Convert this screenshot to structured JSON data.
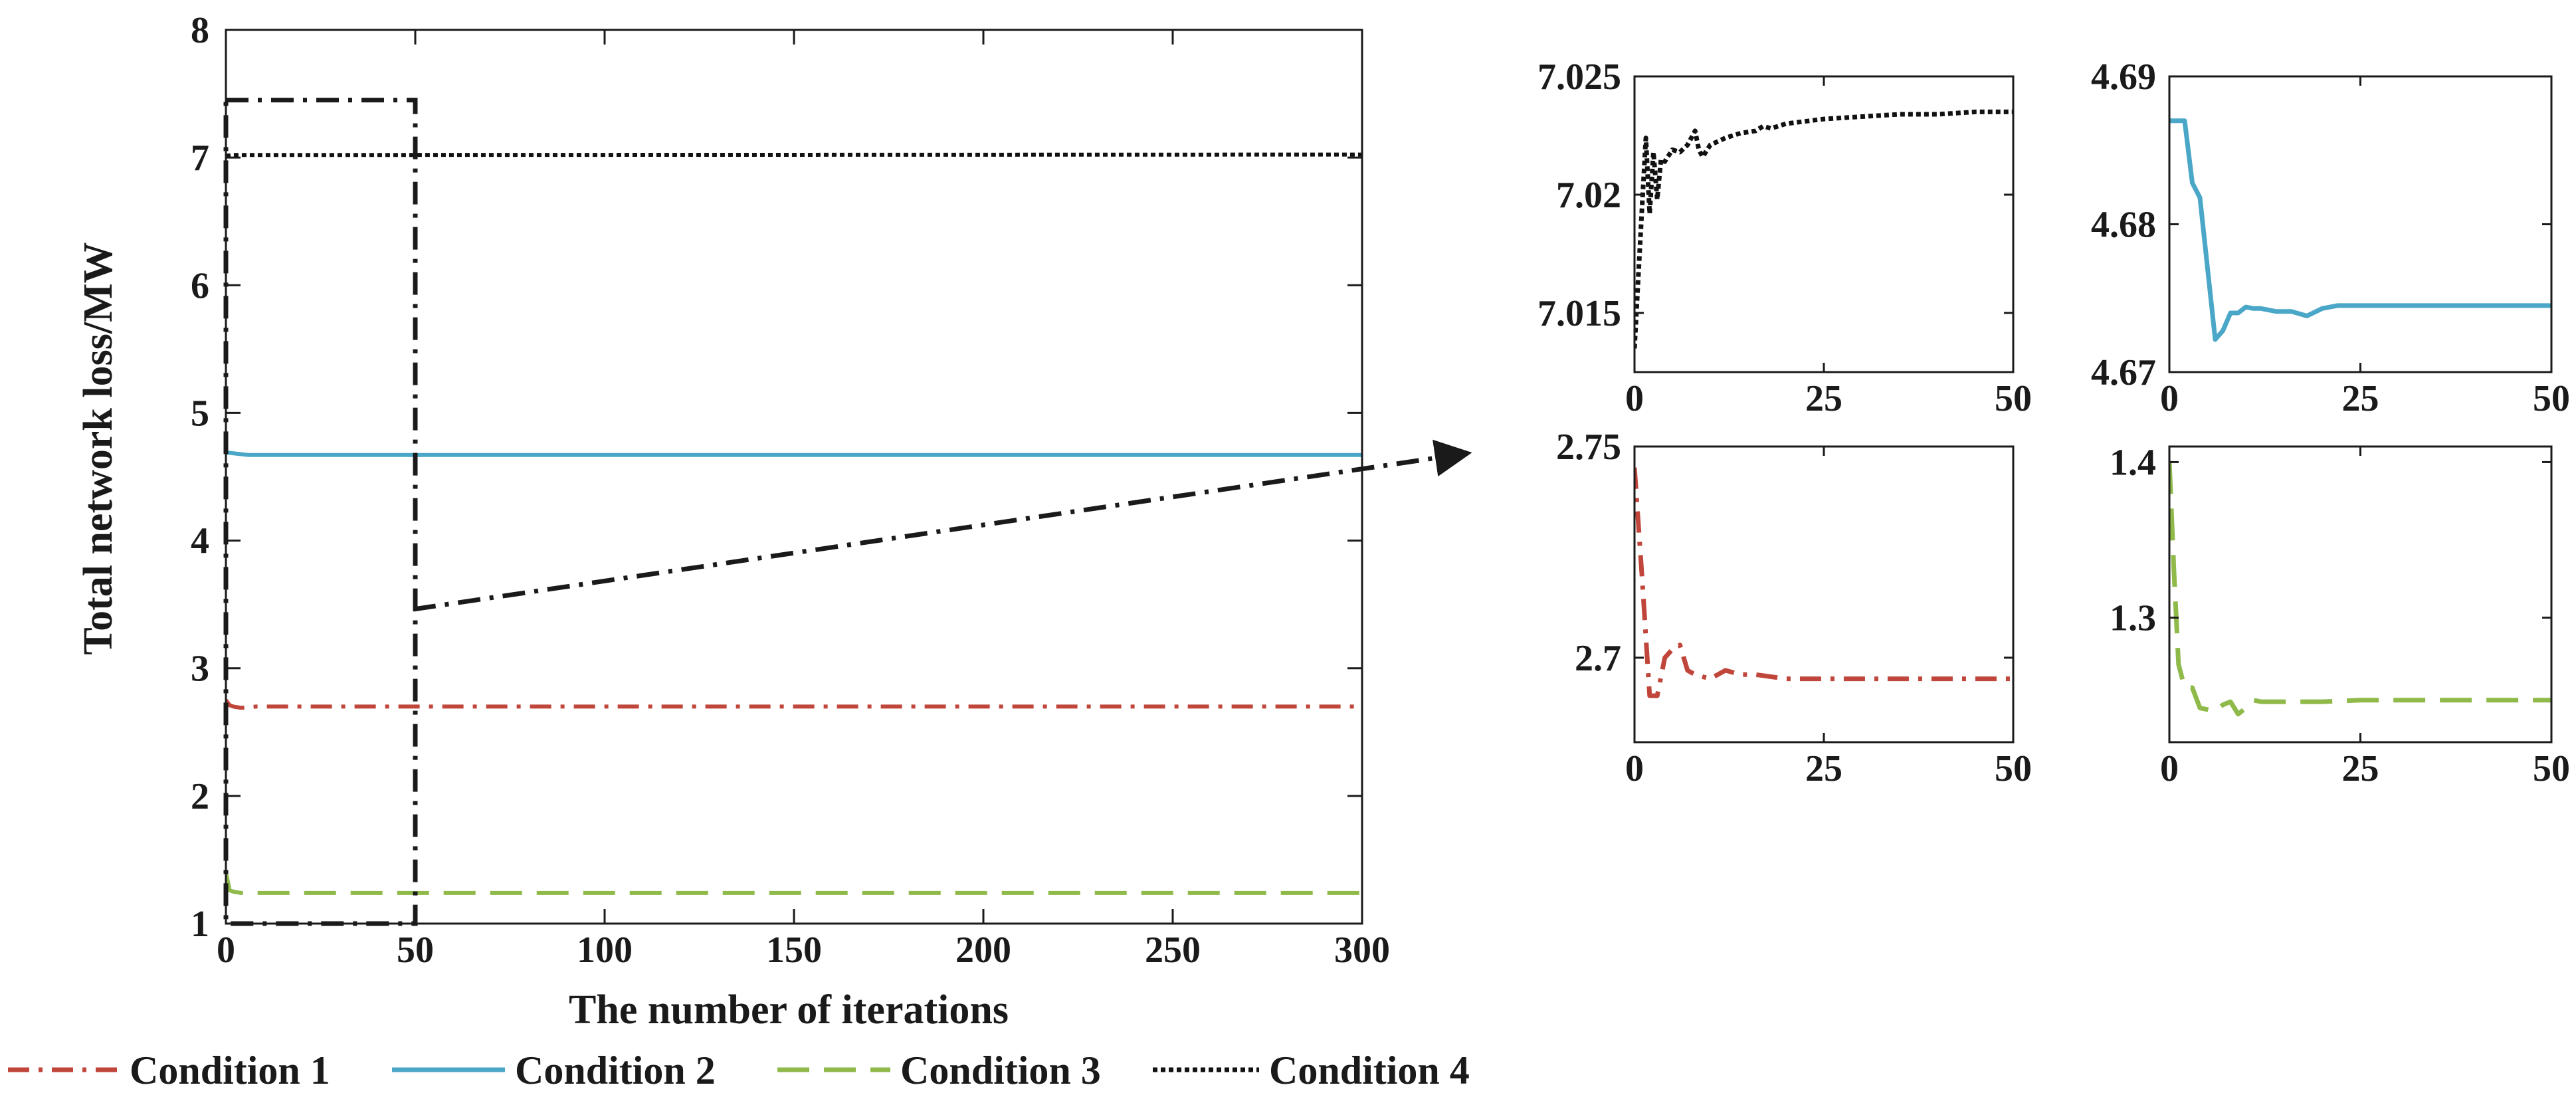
{
  "colors": {
    "condition_1": "#c0463b",
    "condition_2": "#4aa7c8",
    "condition_3": "#8fba4a",
    "condition_4": "#111111",
    "zoom_box": "#1a1a1a"
  },
  "chart_data": [
    {
      "id": "main",
      "type": "line",
      "title": "",
      "xlabel": "The number of iterations",
      "ylabel": "Total network loss/MW",
      "xlim": [
        0,
        300
      ],
      "ylim": [
        1,
        8
      ],
      "xticks": [
        "0",
        "50",
        "100",
        "150",
        "200",
        "250",
        "300"
      ],
      "yticks": [
        "1",
        "2",
        "3",
        "4",
        "5",
        "6",
        "7",
        "8"
      ],
      "grid": false,
      "zoom_region": {
        "x": [
          0,
          50
        ],
        "y": [
          1,
          7.45
        ]
      },
      "series": [
        {
          "name": "Condition 1",
          "style": "dash-dot",
          "x": [
            0,
            1,
            2,
            4,
            8,
            300
          ],
          "y": [
            2.75,
            2.71,
            2.7,
            2.69,
            2.7,
            2.7
          ]
        },
        {
          "name": "Condition 2",
          "style": "solid",
          "x": [
            0,
            3,
            6,
            12,
            300
          ],
          "y": [
            4.69,
            4.68,
            4.67,
            4.67,
            4.67
          ]
        },
        {
          "name": "Condition 3",
          "style": "dashed",
          "x": [
            0,
            1,
            2,
            4,
            8,
            300
          ],
          "y": [
            1.4,
            1.26,
            1.25,
            1.24,
            1.24,
            1.24
          ]
        },
        {
          "name": "Condition 4",
          "style": "dotted",
          "x": [
            0,
            2,
            300
          ],
          "y": [
            7.014,
            7.02,
            7.0235
          ]
        }
      ]
    },
    {
      "id": "zoom_condition_4",
      "type": "line",
      "xlim": [
        0,
        50
      ],
      "ylim": [
        7.0125,
        7.025
      ],
      "xticks": [
        "0",
        "25",
        "50"
      ],
      "yticks": [
        "7.015",
        "7.02",
        "7.025"
      ],
      "series": [
        {
          "name": "Condition 4",
          "style": "dotted",
          "x": [
            0,
            1,
            1.5,
            2,
            2.5,
            3,
            3.5,
            4,
            5,
            6,
            7,
            8,
            8.5,
            9,
            10,
            12,
            14,
            16,
            17,
            18,
            20,
            25,
            30,
            35,
            40,
            45,
            50
          ],
          "y": [
            7.0135,
            7.0195,
            7.0224,
            7.0192,
            7.0218,
            7.0198,
            7.0215,
            7.0214,
            7.0219,
            7.0218,
            7.0221,
            7.0227,
            7.0219,
            7.0216,
            7.0221,
            7.0224,
            7.0226,
            7.0227,
            7.0229,
            7.0228,
            7.023,
            7.0232,
            7.0233,
            7.0234,
            7.0234,
            7.0235,
            7.0235
          ]
        }
      ]
    },
    {
      "id": "zoom_condition_2",
      "type": "line",
      "xlim": [
        0,
        50
      ],
      "ylim": [
        4.67,
        4.69
      ],
      "xticks": [
        "0",
        "25",
        "50"
      ],
      "yticks": [
        "4.67",
        "4.68",
        "4.69"
      ],
      "series": [
        {
          "name": "Condition 2",
          "style": "solid",
          "x": [
            0,
            2,
            3,
            4,
            6,
            7,
            8,
            9,
            10,
            11,
            12,
            14,
            16,
            18,
            20,
            22,
            25,
            30,
            40,
            50
          ],
          "y": [
            4.687,
            4.687,
            4.6828,
            4.6818,
            4.6722,
            4.6728,
            4.674,
            4.674,
            4.6744,
            4.6743,
            4.6743,
            4.6741,
            4.6741,
            4.6738,
            4.6743,
            4.6745,
            4.6745,
            4.6745,
            4.6745,
            4.6745
          ]
        }
      ]
    },
    {
      "id": "zoom_condition_1",
      "type": "line",
      "xlim": [
        0,
        50
      ],
      "ylim": [
        2.68,
        2.75
      ],
      "xticks": [
        "0",
        "25",
        "50"
      ],
      "yticks": [
        "2.7",
        "2.75"
      ],
      "series": [
        {
          "name": "Condition 1",
          "style": "dash-dot",
          "x": [
            0,
            1,
            2,
            3,
            4,
            5,
            6,
            7,
            8,
            10,
            12,
            14,
            16,
            20,
            25,
            30,
            40,
            50
          ],
          "y": [
            2.745,
            2.719,
            2.691,
            2.691,
            2.7,
            2.702,
            2.703,
            2.697,
            2.696,
            2.695,
            2.697,
            2.696,
            2.696,
            2.695,
            2.695,
            2.695,
            2.695,
            2.695
          ]
        }
      ]
    },
    {
      "id": "zoom_condition_3",
      "type": "line",
      "xlim": [
        0,
        50
      ],
      "ylim": [
        1.22,
        1.41
      ],
      "xticks": [
        "0",
        "25",
        "50"
      ],
      "yticks": [
        "1.3",
        "1.4"
      ],
      "series": [
        {
          "name": "Condition 3",
          "style": "dashed",
          "x": [
            0,
            0.6,
            1.2,
            2,
            3,
            4,
            6,
            7,
            8,
            9,
            10,
            11,
            12,
            15,
            20,
            25,
            30,
            40,
            50
          ],
          "y": [
            1.4,
            1.33,
            1.27,
            1.255,
            1.255,
            1.242,
            1.24,
            1.244,
            1.246,
            1.238,
            1.242,
            1.247,
            1.246,
            1.246,
            1.246,
            1.247,
            1.247,
            1.247,
            1.247
          ]
        }
      ]
    }
  ],
  "legend": {
    "position": "bottom",
    "items": [
      "Condition 1",
      "Condition 2",
      "Condition 3",
      "Condition 4"
    ]
  }
}
